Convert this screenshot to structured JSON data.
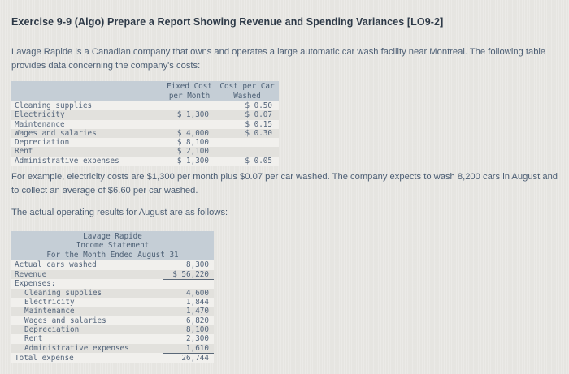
{
  "page": {
    "title": "Exercise 9-9 (Algo) Prepare a Report Showing Revenue and Spending Variances [LO9-2]"
  },
  "paragraphs": {
    "intro": "Lavage Rapide is a Canadian company that owns and operates a large automatic car wash facility near Montreal. The following table provides data concerning the company's costs:",
    "example": "For example, electricity costs are $1,300 per month plus $0.07 per car washed. The company expects to wash 8,200 cars in August and to collect an average of $6.60 per car washed.",
    "actual": "The actual operating results for August are as follows:"
  },
  "cost_table": {
    "columns": [
      {
        "line1": "Fixed Cost",
        "line2": "per Month"
      },
      {
        "line1": "Cost per Car",
        "line2": "Washed"
      }
    ],
    "rows": [
      {
        "label": "Cleaning supplies",
        "fixed_cost_per_month": "",
        "cost_per_car_washed": "$ 0.50"
      },
      {
        "label": "Electricity",
        "fixed_cost_per_month": "$ 1,300",
        "cost_per_car_washed": "$ 0.07"
      },
      {
        "label": "Maintenance",
        "fixed_cost_per_month": "",
        "cost_per_car_washed": "$ 0.15"
      },
      {
        "label": "Wages and salaries",
        "fixed_cost_per_month": "$ 4,000",
        "cost_per_car_washed": "$ 0.30"
      },
      {
        "label": "Depreciation",
        "fixed_cost_per_month": "$ 8,100",
        "cost_per_car_washed": ""
      },
      {
        "label": "Rent",
        "fixed_cost_per_month": "$ 2,100",
        "cost_per_car_washed": ""
      },
      {
        "label": "Administrative expenses",
        "fixed_cost_per_month": "$ 1,300",
        "cost_per_car_washed": "$ 0.05"
      }
    ]
  },
  "income_statement": {
    "title_lines": [
      "Lavage Rapide",
      "Income Statement",
      "For the Month Ended August 31"
    ],
    "rows": [
      {
        "label": "Actual cars washed",
        "value": "8,300",
        "indent": 0,
        "underline": false
      },
      {
        "label": "Revenue",
        "value": "$ 56,220",
        "indent": 0,
        "underline": true
      },
      {
        "label": "Expenses:",
        "value": "",
        "indent": 0,
        "underline": false
      },
      {
        "label": "Cleaning supplies",
        "value": "4,600",
        "indent": 1,
        "underline": false
      },
      {
        "label": "Electricity",
        "value": "1,844",
        "indent": 1,
        "underline": false
      },
      {
        "label": "Maintenance",
        "value": "1,470",
        "indent": 1,
        "underline": false
      },
      {
        "label": "Wages and salaries",
        "value": "6,820",
        "indent": 1,
        "underline": false
      },
      {
        "label": "Depreciation",
        "value": "8,100",
        "indent": 1,
        "underline": false
      },
      {
        "label": "Rent",
        "value": "2,300",
        "indent": 1,
        "underline": false
      },
      {
        "label": "Administrative expenses",
        "value": "1,610",
        "indent": 1,
        "underline": true
      },
      {
        "label": "Total expense",
        "value": "26,744",
        "indent": 0,
        "underline": true
      }
    ]
  },
  "colors": {
    "page_background": "#e9e8e4",
    "title_text": "#2e3a48",
    "body_text": "#4c5e74",
    "table_header_background": "#c5ced6",
    "table_text": "#54657b",
    "row_stripe": "#e2e1dd",
    "row_light": "#f1f0ed"
  }
}
